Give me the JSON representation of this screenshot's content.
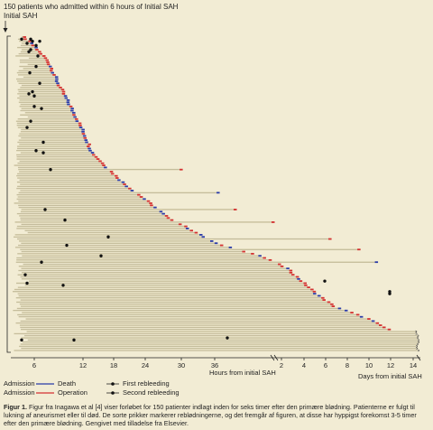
{
  "chart_data": {
    "type": "timeline",
    "header_line1": "150 patients who admitted within 6 hours of Initial SAH",
    "header_line2": "Initial SAH",
    "xlabel_hours": "Hours from initial SAH",
    "xlabel_days": "Days from initial SAH",
    "hours_ticks": [
      "6",
      "12",
      "18",
      "24",
      "30",
      "36"
    ],
    "days_ticks": [
      "2",
      "4",
      "6",
      "8",
      "10",
      "12",
      "14"
    ],
    "hours_range": [
      6,
      48
    ],
    "days_range": [
      2,
      14
    ],
    "n_patients": 150,
    "legend": {
      "death": "Death",
      "operation": "Operation",
      "admission1": "Admission",
      "admission2": "Admission",
      "first_rebleeding": "First rebleeding",
      "second_rebleeding": "Second rebleeding"
    },
    "colors": {
      "background": "#f2ecd4",
      "bar": "#dcd4b2",
      "death": "#2a3ba8",
      "operation": "#d43030",
      "rebleeding": "#111111"
    }
  },
  "caption": {
    "label": "Figur 1.",
    "text": " Figur fra Inagawa et al [4] viser forløbet for 150 patienter indlagt inden for seks timer efter den primære blødning. Patienterne er fulgt til lukning af aneurismet eller til død. De sorte prikker markerer reblødningerne, og det fremgår af figuren, at disse har hyppigst forekomst 3-5 timer efter den primære blødning. Gengivet med tilladelse fra Elsevier."
  }
}
